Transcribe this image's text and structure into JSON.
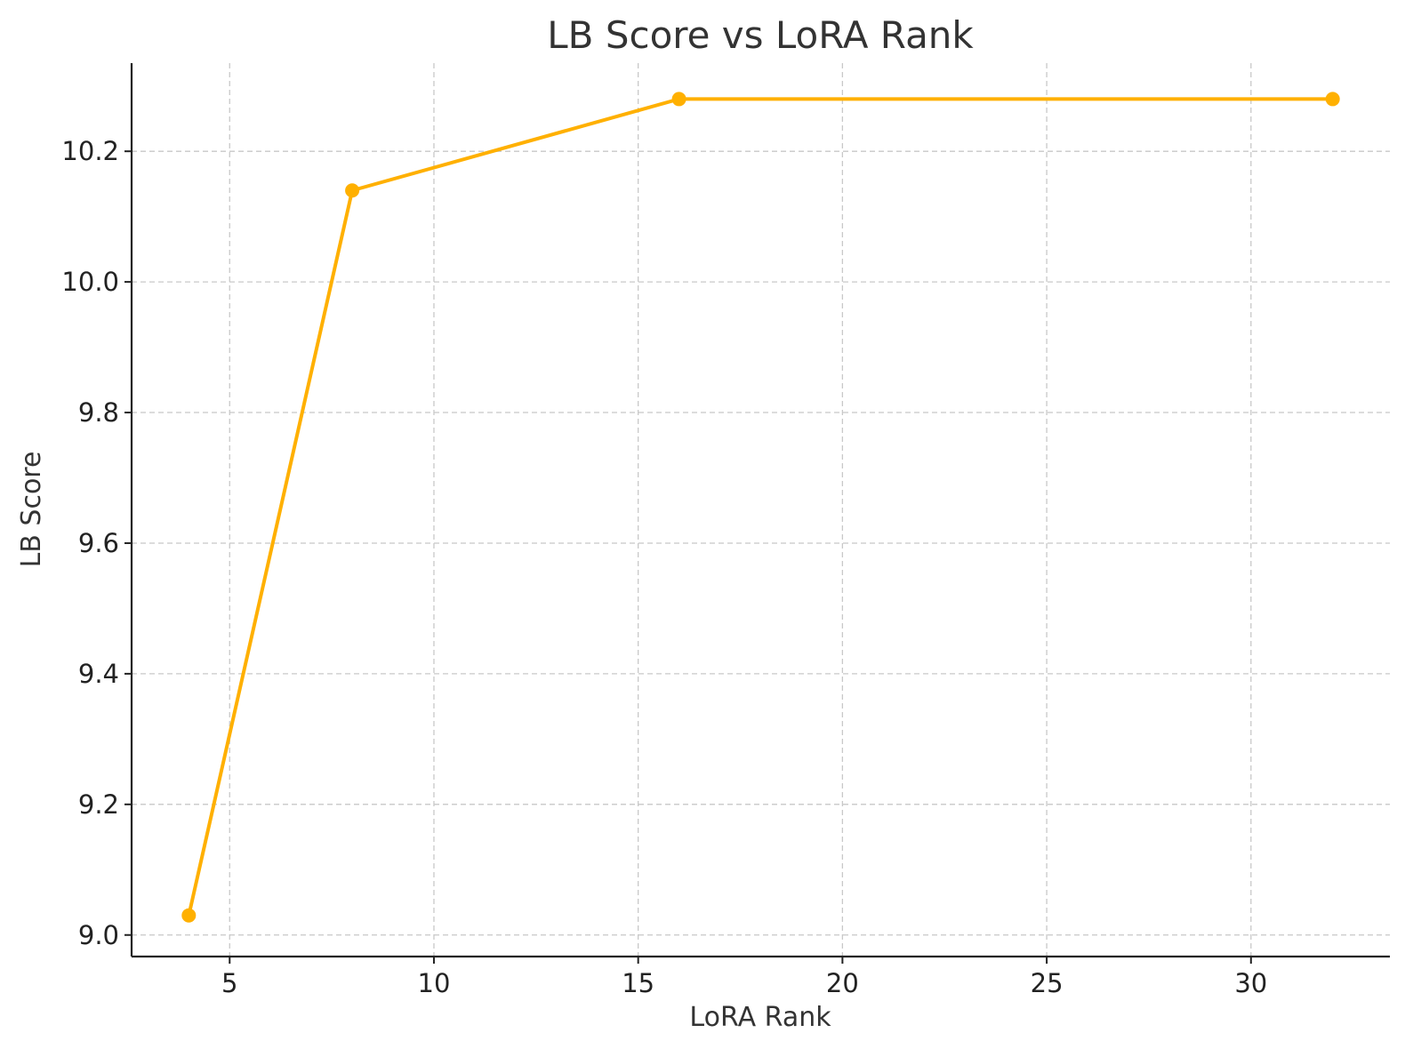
{
  "chart_data": {
    "type": "line",
    "title": "LB Score vs LoRA Rank",
    "xlabel": "LoRA Rank",
    "ylabel": "LB Score",
    "x": [
      4,
      8,
      16,
      32
    ],
    "series": [
      {
        "values": [
          9.03,
          10.14,
          10.28,
          10.28
        ],
        "color": "#FFB000"
      }
    ],
    "xlim": [
      2.6,
      33.4
    ],
    "ylim": [
      8.967,
      10.335
    ],
    "xticks": [
      5,
      10,
      15,
      20,
      25,
      30
    ],
    "xtick_labels": [
      "5",
      "10",
      "15",
      "20",
      "25",
      "30"
    ],
    "yticks": [
      9.0,
      9.2,
      9.4,
      9.6,
      9.8,
      10.0,
      10.2
    ],
    "ytick_labels": [
      "9.0",
      "9.2",
      "9.4",
      "9.6",
      "9.8",
      "10.0",
      "10.2"
    ],
    "grid": true,
    "marker": "circle"
  }
}
